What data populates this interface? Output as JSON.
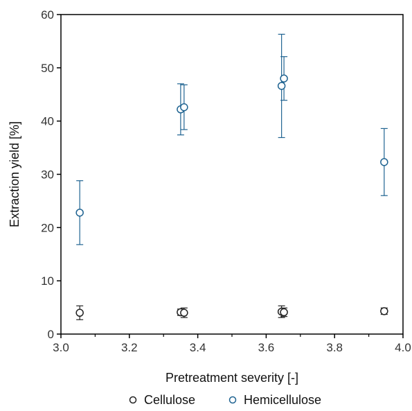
{
  "chart_data": {
    "type": "scatter",
    "title": "",
    "xlabel": "Pretreatment severity [-]",
    "ylabel": "Extraction yield [%]",
    "xlim": [
      3.0,
      4.0
    ],
    "ylim": [
      0,
      60
    ],
    "xticks": [
      "3.0",
      "3.2",
      "3.4",
      "3.6",
      "3.8",
      "4.0"
    ],
    "yticks": [
      "0",
      "10",
      "20",
      "30",
      "40",
      "50",
      "60"
    ],
    "grid": false,
    "legend_position": "bottom",
    "series": [
      {
        "name": "Cellulose",
        "color": "#222222",
        "points": [
          {
            "x": 3.055,
            "y": 4.0,
            "err": 1.3
          },
          {
            "x": 3.35,
            "y": 4.1,
            "err": 0.6
          },
          {
            "x": 3.36,
            "y": 4.0,
            "err": 0.9
          },
          {
            "x": 3.645,
            "y": 4.2,
            "err": 1.1
          },
          {
            "x": 3.652,
            "y": 4.1,
            "err": 0.8
          },
          {
            "x": 3.945,
            "y": 4.3,
            "err": 0.6
          }
        ]
      },
      {
        "name": "Hemicellulose",
        "color": "#1f6391",
        "points": [
          {
            "x": 3.055,
            "y": 22.8,
            "err": 6.0
          },
          {
            "x": 3.35,
            "y": 42.2,
            "err": 4.8
          },
          {
            "x": 3.36,
            "y": 42.6,
            "err": 4.2
          },
          {
            "x": 3.645,
            "y": 46.6,
            "err": 9.7
          },
          {
            "x": 3.652,
            "y": 48.0,
            "err": 4.1
          },
          {
            "x": 3.945,
            "y": 32.3,
            "err": 6.3
          }
        ]
      }
    ]
  }
}
